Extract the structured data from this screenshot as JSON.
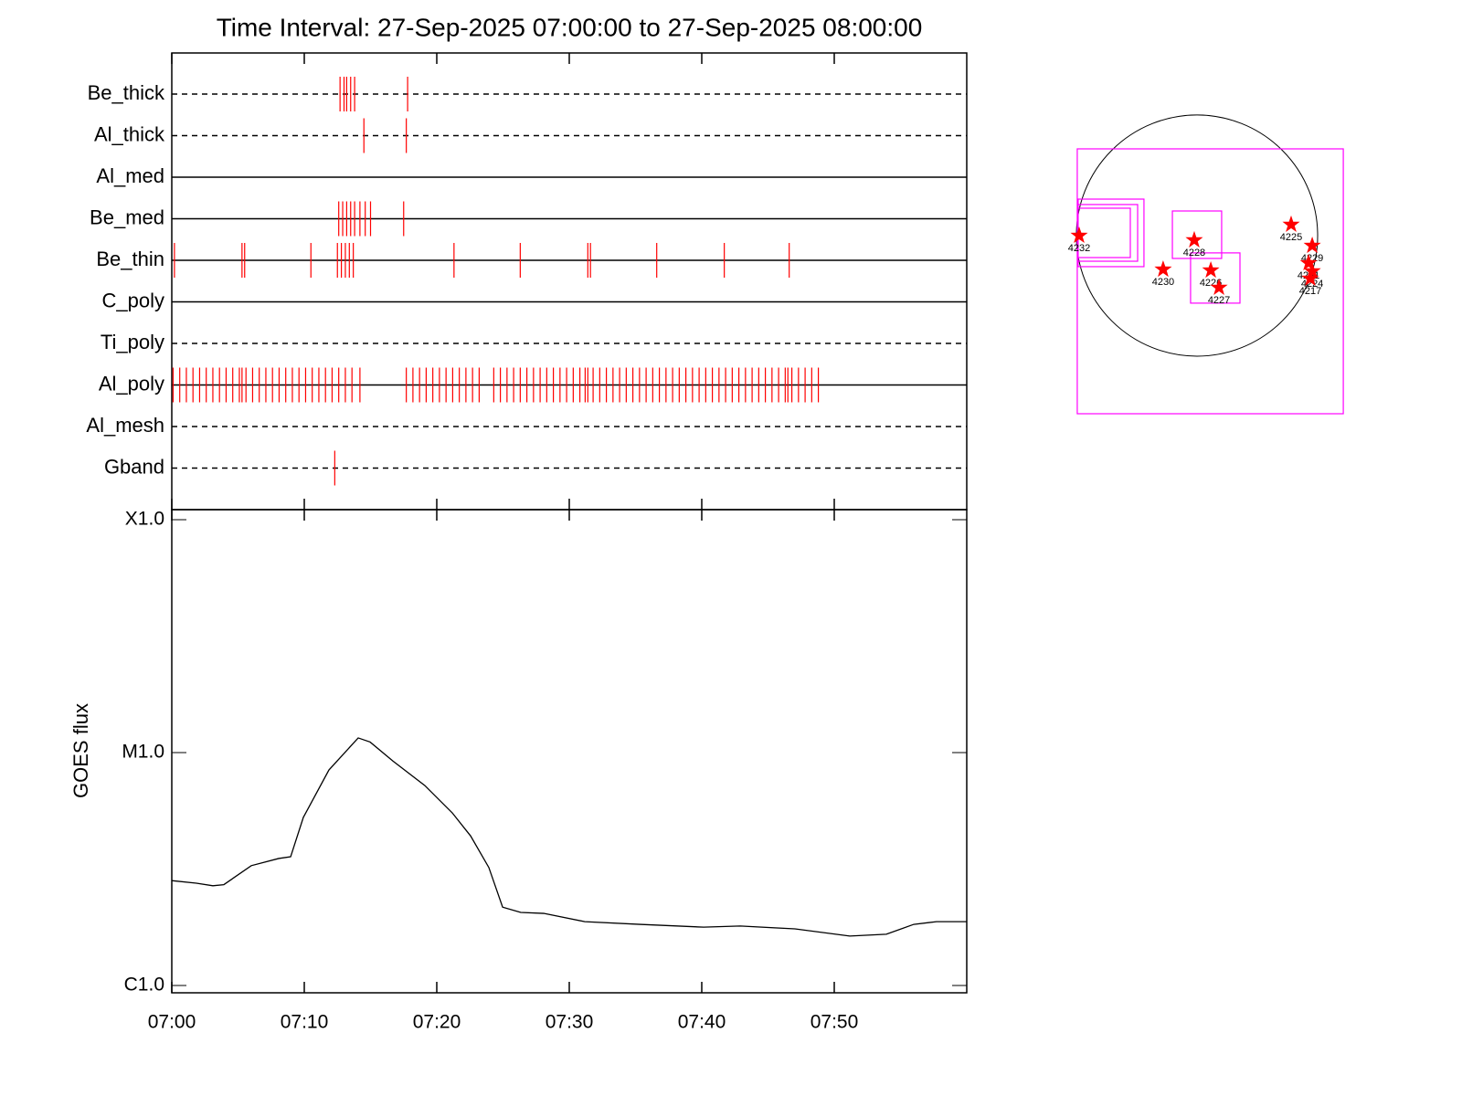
{
  "chart_data": [
    {
      "type": "event",
      "title": "Time Interval: 27-Sep-2025 07:00:00 to 27-Sep-2025 08:00:00",
      "categories": [
        "Be_thick",
        "Al_thick",
        "Al_med",
        "Be_med",
        "Be_thin",
        "C_poly",
        "Ti_poly",
        "Al_poly",
        "Al_mesh",
        "Gband"
      ],
      "line_styles": [
        "dashed",
        "dashed",
        "solid",
        "solid",
        "solid",
        "solid",
        "dashed",
        "solid",
        "dashed",
        "dashed"
      ],
      "color": "#ff0000",
      "xlim": [
        0,
        60
      ],
      "events": [
        [
          12.7,
          13.0,
          13.2,
          13.5,
          13.8,
          17.8
        ],
        [
          14.5,
          17.7
        ],
        [],
        [
          12.6,
          12.9,
          13.2,
          13.5,
          13.8,
          14.2,
          14.6,
          15.0,
          17.5
        ],
        [
          0.2,
          5.3,
          5.5,
          10.5,
          12.5,
          12.8,
          13.1,
          13.4,
          13.7,
          21.3,
          26.3,
          31.4,
          31.6,
          36.6,
          41.7,
          46.6
        ],
        [],
        [],
        [
          0.1,
          0.6,
          1.1,
          1.6,
          2.1,
          2.6,
          3.1,
          3.6,
          4.1,
          4.6,
          5.1,
          5.3,
          5.6,
          6.1,
          6.6,
          7.1,
          7.6,
          8.1,
          8.6,
          9.1,
          9.6,
          10.1,
          10.6,
          11.1,
          11.6,
          12.1,
          12.6,
          13.1,
          13.6,
          14.2,
          17.7,
          18.2,
          18.7,
          19.2,
          19.7,
          20.2,
          20.7,
          21.2,
          21.7,
          22.2,
          22.7,
          23.2,
          24.3,
          24.8,
          25.3,
          25.8,
          26.3,
          26.8,
          27.3,
          27.8,
          28.3,
          28.8,
          29.3,
          29.8,
          30.3,
          30.8,
          31.2,
          31.4,
          31.8,
          32.3,
          32.8,
          33.3,
          33.8,
          34.3,
          34.8,
          35.3,
          35.8,
          36.3,
          36.8,
          37.3,
          37.8,
          38.3,
          38.8,
          39.3,
          39.8,
          40.3,
          40.8,
          41.3,
          41.8,
          42.3,
          42.8,
          43.3,
          43.8,
          44.3,
          44.8,
          45.3,
          45.8,
          46.3,
          46.5,
          46.8,
          47.3,
          47.8,
          48.3,
          48.8
        ],
        [],
        [
          12.3
        ]
      ]
    },
    {
      "type": "line",
      "y_label": "GOES flux",
      "log_y": true,
      "color": "#000000",
      "x": [
        0,
        1.86,
        3.1,
        3.93,
        6.0,
        8.07,
        8.97,
        9.93,
        11.86,
        14.07,
        14.97,
        16.69,
        19.1,
        21.17,
        22.55,
        23.93,
        24.97,
        26.34,
        28.07,
        31.17,
        35.31,
        40.14,
        42.9,
        47.03,
        51.17,
        53.93,
        56.0,
        57.72,
        60
      ],
      "values": [
        2.82e-06,
        2.75e-06,
        2.68e-06,
        2.71e-06,
        3.27e-06,
        3.51e-06,
        3.57e-06,
        5.27e-06,
        8.42e-06,
        1.156e-05,
        1.11e-05,
        9.2e-06,
        7.22e-06,
        5.51e-06,
        4.39e-06,
        3.21e-06,
        2.17e-06,
        2.06e-06,
        2.04e-06,
        1.88e-06,
        1.83e-06,
        1.78e-06,
        1.8e-06,
        1.75e-06,
        1.63e-06,
        1.66e-06,
        1.83e-06,
        1.88e-06,
        1.88e-06
      ],
      "xlim": [
        0,
        60
      ],
      "xticks": [
        {
          "value": 0,
          "label": "07:00"
        },
        {
          "value": 10,
          "label": "07:10"
        },
        {
          "value": 20,
          "label": "07:20"
        },
        {
          "value": 30,
          "label": "07:30"
        },
        {
          "value": 40,
          "label": "07:40"
        },
        {
          "value": 50,
          "label": "07:50"
        }
      ],
      "ylim": [
        1e-06,
        0.0001
      ],
      "yticks": [
        {
          "value": 1e-06,
          "label": "C1.0"
        },
        {
          "value": 1e-05,
          "label": "M1.0"
        },
        {
          "value": 0.0001,
          "label": "X1.0"
        }
      ]
    },
    {
      "type": "map",
      "xlim": [
        -1085,
        1302
      ],
      "ylim": [
        -1534,
        998
      ],
      "solar_radius": 955,
      "marker_color": "#ff0000",
      "box_color": "#ff00ff",
      "points": [
        {
          "label": "4232",
          "x": -933,
          "y": 0
        },
        {
          "label": "4228",
          "x": -22,
          "y": -36
        },
        {
          "label": "4230",
          "x": -268,
          "y": -268
        },
        {
          "label": "4226",
          "x": 109,
          "y": -275
        },
        {
          "label": "4227",
          "x": 174,
          "y": -412
        },
        {
          "label": "4225",
          "x": 745,
          "y": 87
        },
        {
          "label": "4229",
          "x": 912,
          "y": -80
        },
        {
          "label": "4231",
          "x": 883,
          "y": -217
        },
        {
          "label": "4224",
          "x": 912,
          "y": -282
        },
        {
          "label": "4217",
          "x": 897,
          "y": -340
        }
      ],
      "boxes": [
        {
          "x": [
            -948,
            1158
          ],
          "y": [
            -1411,
            687
          ]
        },
        {
          "x": [
            -195,
            195
          ],
          "y": [
            -181,
            195
          ]
        },
        {
          "x": [
            -51,
            340
          ],
          "y": [
            -535,
            -137
          ]
        },
        {
          "x": [
            -941,
            -420
          ],
          "y": [
            -246,
            289
          ]
        },
        {
          "x": [
            -941,
            -470
          ],
          "y": [
            -203,
            246
          ]
        },
        {
          "x": [
            -941,
            -528
          ],
          "y": [
            -174,
            217
          ]
        }
      ]
    }
  ]
}
